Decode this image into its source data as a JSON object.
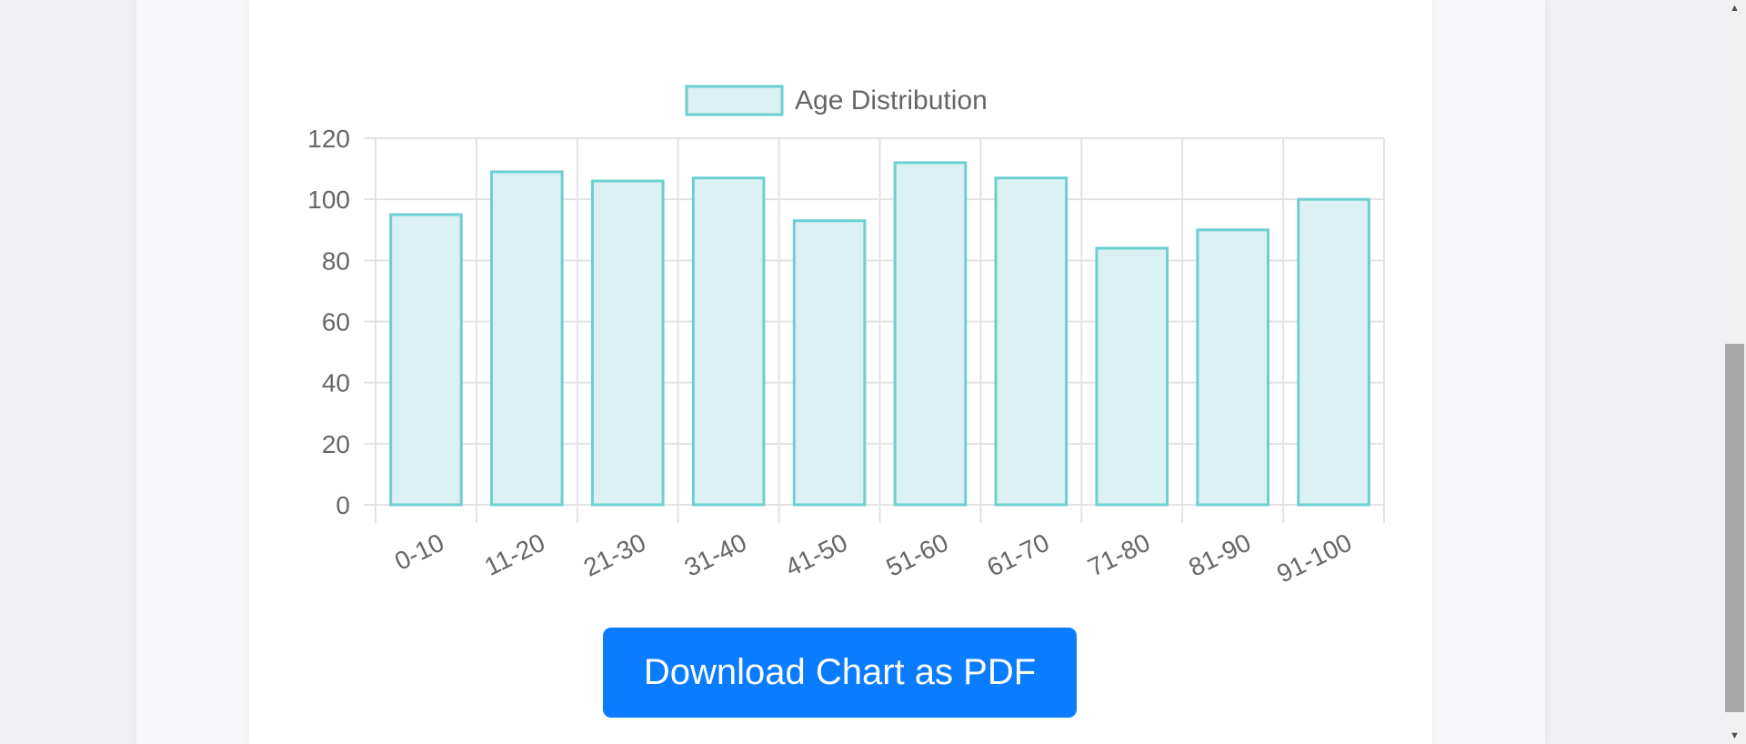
{
  "chart_data": {
    "type": "bar",
    "legend": [
      "Age Distribution"
    ],
    "legend_position": "top-center",
    "categories": [
      "0-10",
      "11-20",
      "21-30",
      "31-40",
      "41-50",
      "51-60",
      "61-70",
      "71-80",
      "81-90",
      "91-100"
    ],
    "series": [
      {
        "name": "Age Distribution",
        "values": [
          95,
          109,
          106,
          107,
          93,
          112,
          107,
          84,
          90,
          100
        ]
      }
    ],
    "ylim": [
      0,
      120
    ],
    "yticks": [
      "0",
      "20",
      "40",
      "60",
      "80",
      "100",
      "120"
    ],
    "grid": true,
    "colors": {
      "bar_fill": "#dbf0f2",
      "bar_border": "#6dcfcf",
      "grid": "#e3e3e3",
      "tick_text": "#666666"
    }
  },
  "actions": {
    "download_label": "Download Chart as PDF"
  }
}
